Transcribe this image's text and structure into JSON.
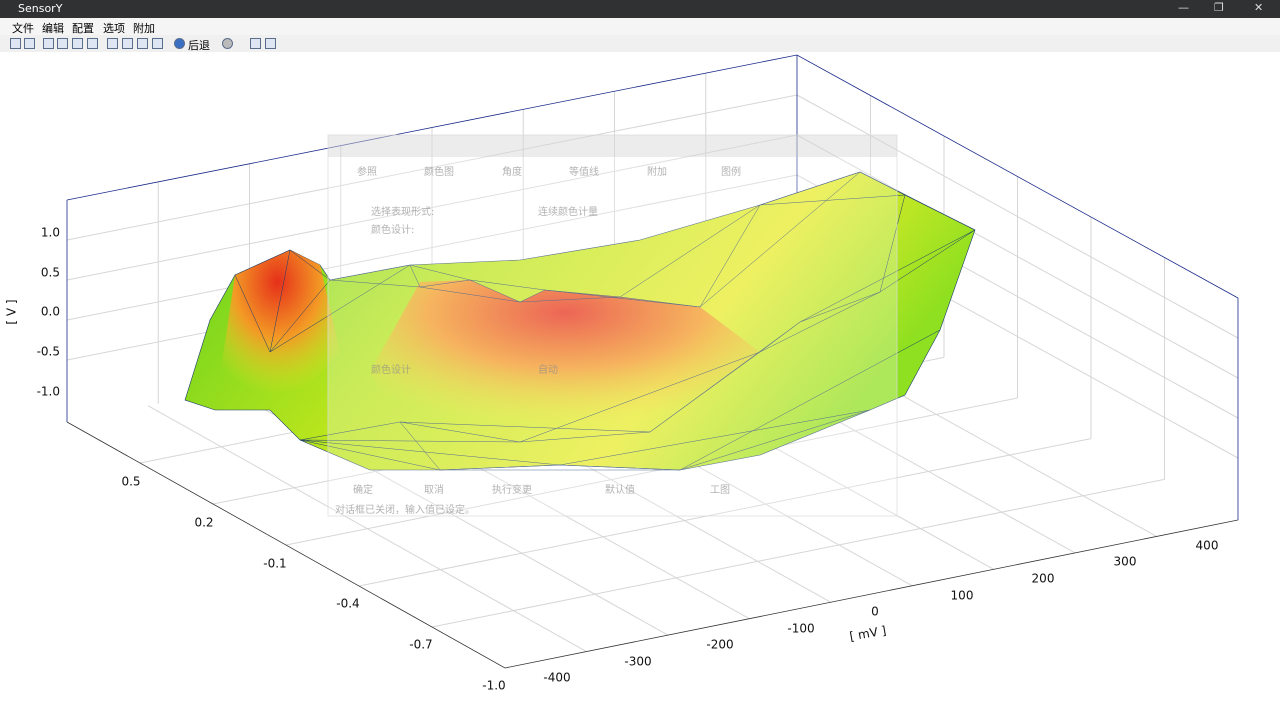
{
  "window": {
    "title": "SensorY"
  },
  "menu": [
    "文件",
    "编辑",
    "配置",
    "选项",
    "附加"
  ],
  "toolbar": {
    "back": "后退"
  },
  "plot": {
    "z_axis": {
      "label": "[ V ]",
      "ticks": [
        "1.0",
        "0.5",
        "0.0",
        "-0.5",
        "-1.0"
      ]
    },
    "y_axis": {
      "ticks": [
        "0.5",
        "0.2",
        "-0.1",
        "-0.4",
        "-0.7",
        "-1.0"
      ]
    },
    "x_axis": {
      "label": "[ mV ]",
      "ticks": [
        "-400",
        "-300",
        "-200",
        "-100",
        "0",
        "100",
        "200",
        "300",
        "400"
      ]
    }
  },
  "dialog": {
    "tabs": [
      "参照",
      "颜色图",
      "角度",
      "等值线",
      "附加",
      "图例"
    ],
    "fields": {
      "representation_label": "选择表现形式:",
      "representation_value": "连续颜色计量",
      "color_label": "颜色设计:",
      "design_label": "颜色设计",
      "design_value": "自动"
    },
    "buttons": [
      "确定",
      "取消",
      "执行变更",
      "默认值",
      "工图"
    ],
    "status": "对话框已关闭，输入值已设定。"
  }
}
